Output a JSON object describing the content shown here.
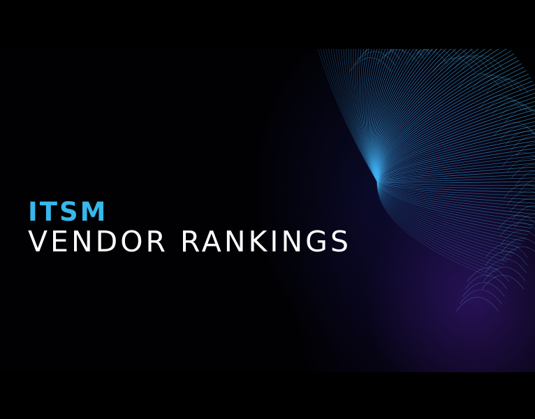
{
  "banner": {
    "title_accent": "ITSM",
    "title_main": "VENDOR RANKINGS",
    "colors": {
      "accent": "#37b7ea",
      "text": "#ffffff",
      "background": "#000000",
      "fiber": "#3fb0f0",
      "glow": "#4a2a9a"
    }
  }
}
